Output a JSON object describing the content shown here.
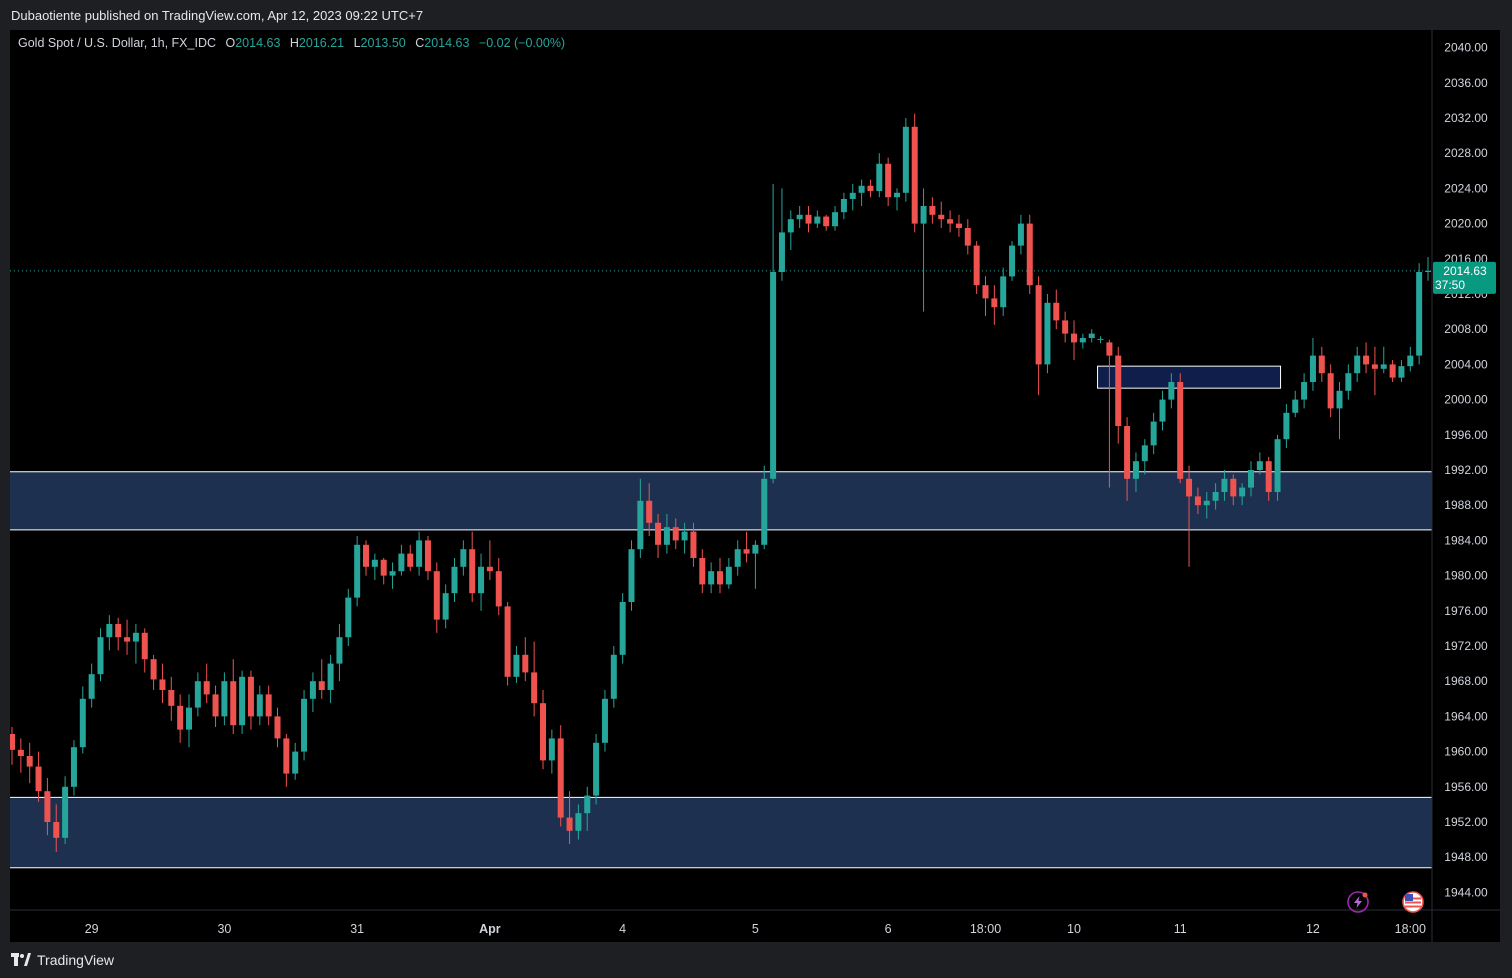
{
  "header": {
    "published": "Dubaotiente published on TradingView.com, Apr 12, 2023 09:22 UTC+7"
  },
  "legend": {
    "symbol": "Gold Spot / U.S. Dollar, 1h, FX_IDC",
    "o_label": "O",
    "o_value": "2014.63",
    "h_label": "H",
    "h_value": "2016.21",
    "l_label": "L",
    "l_value": "2013.50",
    "c_label": "C",
    "c_value": "2014.63",
    "change": "−0.02 (−0.00%)"
  },
  "price_tag": {
    "price": "2014.63",
    "countdown": "37:50"
  },
  "footer": {
    "brand": "TradingView"
  },
  "colors": {
    "background": "#000000",
    "up": "#26a69a",
    "down": "#ef5350",
    "zone_fill": "#1e3050",
    "zone_border": "#ffffff",
    "small_zone_fill": "#0f1e4a",
    "axis_text": "#d1d4dc",
    "price_tag_bg": "#089981"
  },
  "chart_data": {
    "type": "candlestick",
    "symbol": "XAUUSD",
    "timeframe": "1h",
    "ylim": [
      1942,
      2042
    ],
    "y_ticks": [
      "2040.00",
      "2036.00",
      "2032.00",
      "2028.00",
      "2024.00",
      "2020.00",
      "2016.00",
      "2012.00",
      "2008.00",
      "2004.00",
      "2000.00",
      "1996.00",
      "1992.00",
      "1988.00",
      "1984.00",
      "1980.00",
      "1976.00",
      "1972.00",
      "1968.00",
      "1964.00",
      "1960.00",
      "1956.00",
      "1952.00",
      "1948.00",
      "1944.00"
    ],
    "x_ticks": [
      {
        "label": "29",
        "bar": 9
      },
      {
        "label": "30",
        "bar": 24
      },
      {
        "label": "31",
        "bar": 39
      },
      {
        "label": "Apr",
        "bar": 54
      },
      {
        "label": "4",
        "bar": 69
      },
      {
        "label": "5",
        "bar": 84
      },
      {
        "label": "6",
        "bar": 99
      },
      {
        "label": "18:00",
        "bar": 110
      },
      {
        "label": "10",
        "bar": 120
      },
      {
        "label": "11",
        "bar": 132
      },
      {
        "label": "12",
        "bar": 147
      },
      {
        "label": "18:00",
        "bar": 158
      }
    ],
    "last_price": 2014.63,
    "zones": [
      {
        "from": 1985.2,
        "to": 1991.8
      },
      {
        "from": 1946.8,
        "to": 1954.8
      }
    ],
    "small_zone": {
      "start_bar": 123,
      "end_bar": 143,
      "from": 2001.3,
      "to": 2003.8
    },
    "ohlc": [
      [
        1962,
        1962.8,
        1958.5,
        1960.2
      ],
      [
        1960.2,
        1961.5,
        1957.6,
        1959.5
      ],
      [
        1959.5,
        1961,
        1956.4,
        1958.3
      ],
      [
        1958.3,
        1960,
        1954.3,
        1955.5
      ],
      [
        1955.5,
        1957,
        1950.5,
        1952
      ],
      [
        1952,
        1954,
        1948.6,
        1950.2
      ],
      [
        1950.2,
        1957.2,
        1949.5,
        1956
      ],
      [
        1956,
        1961.3,
        1955,
        1960.5
      ],
      [
        1960.5,
        1967.4,
        1959.8,
        1966
      ],
      [
        1966,
        1970,
        1965,
        1968.8
      ],
      [
        1968.8,
        1974,
        1968,
        1973
      ],
      [
        1973,
        1975.5,
        1971.5,
        1974.5
      ],
      [
        1974.5,
        1975.2,
        1971.5,
        1973
      ],
      [
        1973,
        1975,
        1971,
        1972.5
      ],
      [
        1972.5,
        1974.5,
        1970,
        1973.5
      ],
      [
        1973.5,
        1974,
        1969,
        1970.5
      ],
      [
        1970.5,
        1971,
        1967,
        1968.2
      ],
      [
        1968.2,
        1970,
        1965.5,
        1967
      ],
      [
        1967,
        1968.5,
        1963.5,
        1965.2
      ],
      [
        1965.2,
        1966.5,
        1961,
        1962.5
      ],
      [
        1962.5,
        1966.5,
        1960.5,
        1965
      ],
      [
        1965,
        1969,
        1964,
        1968
      ],
      [
        1968,
        1970,
        1965.5,
        1966.5
      ],
      [
        1966.5,
        1967.5,
        1962.8,
        1964
      ],
      [
        1964,
        1969,
        1963,
        1968
      ],
      [
        1968,
        1970.5,
        1962,
        1963
      ],
      [
        1963,
        1969.2,
        1962,
        1968.5
      ],
      [
        1968.5,
        1969.2,
        1962.5,
        1964
      ],
      [
        1964,
        1967.5,
        1963,
        1966.5
      ],
      [
        1966.5,
        1967.5,
        1963,
        1964
      ],
      [
        1964,
        1965,
        1960.5,
        1961.5
      ],
      [
        1961.5,
        1962,
        1956,
        1957.5
      ],
      [
        1957.5,
        1961,
        1956.8,
        1960
      ],
      [
        1960,
        1967,
        1959,
        1966
      ],
      [
        1966,
        1969,
        1964.5,
        1968
      ],
      [
        1968,
        1970.5,
        1966,
        1967
      ],
      [
        1967,
        1971,
        1965.5,
        1970
      ],
      [
        1970,
        1974.5,
        1968,
        1973
      ],
      [
        1973,
        1978.5,
        1972,
        1977.5
      ],
      [
        1977.5,
        1984.5,
        1976.5,
        1983.5
      ],
      [
        1983.5,
        1984,
        1980,
        1981
      ],
      [
        1981,
        1982.5,
        1979.5,
        1981.8
      ],
      [
        1981.8,
        1982,
        1979,
        1980
      ],
      [
        1980,
        1981.5,
        1978.5,
        1980.5
      ],
      [
        1980.5,
        1983.5,
        1980,
        1982.5
      ],
      [
        1982.5,
        1983.5,
        1980.5,
        1981
      ],
      [
        1981,
        1985,
        1980,
        1984
      ],
      [
        1984,
        1984.5,
        1979.5,
        1980.5
      ],
      [
        1980.5,
        1981.5,
        1973.5,
        1975
      ],
      [
        1975,
        1979,
        1974,
        1978
      ],
      [
        1978,
        1982,
        1977,
        1981
      ],
      [
        1981,
        1984,
        1980,
        1983
      ],
      [
        1983,
        1985,
        1977,
        1978
      ],
      [
        1978,
        1982.5,
        1976,
        1981
      ],
      [
        1981,
        1984,
        1979.5,
        1980.5
      ],
      [
        1980.5,
        1982,
        1975.5,
        1976.5
      ],
      [
        1976.5,
        1977,
        1967.5,
        1968.5
      ],
      [
        1968.5,
        1972,
        1967.8,
        1971
      ],
      [
        1971,
        1973,
        1968,
        1969
      ],
      [
        1969,
        1972.5,
        1964,
        1965.5
      ],
      [
        1965.5,
        1967,
        1958,
        1959
      ],
      [
        1959,
        1962.5,
        1957.5,
        1961.5
      ],
      [
        1961.5,
        1963,
        1951.5,
        1952.5
      ],
      [
        1952.5,
        1955.5,
        1949.5,
        1951
      ],
      [
        1951,
        1954,
        1950,
        1953
      ],
      [
        1953,
        1956,
        1951,
        1955
      ],
      [
        1955,
        1962,
        1954,
        1961
      ],
      [
        1961,
        1967,
        1960,
        1966
      ],
      [
        1966,
        1972,
        1965,
        1971
      ],
      [
        1971,
        1978,
        1970,
        1977
      ],
      [
        1977,
        1984,
        1976,
        1983
      ],
      [
        1983,
        1991,
        1982,
        1988.5
      ],
      [
        1988.5,
        1990.5,
        1984.5,
        1986
      ],
      [
        1986,
        1987,
        1982,
        1983.5
      ],
      [
        1983.5,
        1987,
        1982.5,
        1985.5
      ],
      [
        1985.5,
        1986.5,
        1983,
        1984
      ],
      [
        1984,
        1986,
        1982.5,
        1985
      ],
      [
        1985,
        1986,
        1981,
        1982
      ],
      [
        1982,
        1983,
        1978,
        1979
      ],
      [
        1979,
        1981.5,
        1978,
        1980.5
      ],
      [
        1980.5,
        1982,
        1978,
        1979
      ],
      [
        1979,
        1982,
        1978.5,
        1981
      ],
      [
        1981,
        1984,
        1980,
        1983
      ],
      [
        1983,
        1985,
        1981.5,
        1982.5
      ],
      [
        1982.5,
        1984,
        1978.5,
        1983.5
      ],
      [
        1983.5,
        1992.5,
        1983,
        1991
      ],
      [
        1991,
        2024.5,
        1990.5,
        2014.5
      ],
      [
        2014.5,
        2024,
        2013.5,
        2019
      ],
      [
        2019,
        2021.5,
        2017,
        2020.5
      ],
      [
        2020.5,
        2022,
        2019.5,
        2021
      ],
      [
        2021,
        2022,
        2019,
        2020
      ],
      [
        2020,
        2021.5,
        2019.5,
        2020.8
      ],
      [
        2020.8,
        2021,
        2019.2,
        2019.7
      ],
      [
        2019.7,
        2022,
        2019.2,
        2021.3
      ],
      [
        2021.3,
        2023.5,
        2020.5,
        2022.8
      ],
      [
        2022.8,
        2024.5,
        2021.5,
        2023.5
      ],
      [
        2023.5,
        2025,
        2022,
        2024.3
      ],
      [
        2024.3,
        2025,
        2023,
        2023.7
      ],
      [
        2023.7,
        2028,
        2023,
        2026.8
      ],
      [
        2026.8,
        2027.5,
        2022,
        2023
      ],
      [
        2023,
        2024,
        2021.5,
        2023.5
      ],
      [
        2023.5,
        2032,
        2022.5,
        2031
      ],
      [
        2031,
        2032.5,
        2019,
        2020
      ],
      [
        2020,
        2024,
        2010,
        2022
      ],
      [
        2022,
        2023,
        2020,
        2021
      ],
      [
        2021,
        2022.5,
        2019.5,
        2020.5
      ],
      [
        2020.5,
        2021.5,
        2019,
        2020
      ],
      [
        2020,
        2021,
        2018.5,
        2019.5
      ],
      [
        2019.5,
        2020.5,
        2016.5,
        2017.5
      ],
      [
        2017.5,
        2018,
        2012,
        2013
      ],
      [
        2013,
        2014,
        2009.5,
        2011.5
      ],
      [
        2011.5,
        2013,
        2008.5,
        2010.5
      ],
      [
        2010.5,
        2015,
        2009.5,
        2014
      ],
      [
        2014,
        2018,
        2013.5,
        2017.5
      ],
      [
        2017.5,
        2021,
        2016.5,
        2020
      ],
      [
        2020,
        2021,
        2012,
        2013
      ],
      [
        2013,
        2014,
        2000.5,
        2004
      ],
      [
        2004,
        2012,
        2003,
        2011
      ],
      [
        2011,
        2012.5,
        2008,
        2009
      ],
      [
        2009,
        2010,
        2006.5,
        2007.5
      ],
      [
        2007.5,
        2009,
        2004.5,
        2006.5
      ],
      [
        2006.5,
        2007.5,
        2005.8,
        2007
      ],
      [
        2007,
        2008,
        2006.5,
        2007.5
      ],
      [
        2006.8,
        2007.2,
        2006.4,
        2006.9
      ],
      [
        2006.5,
        2006.8,
        1990,
        2005
      ],
      [
        2005,
        2006,
        1995,
        1997
      ],
      [
        1997,
        1998,
        1988.5,
        1991
      ],
      [
        1991,
        1994,
        1989.5,
        1993
      ],
      [
        1993,
        1995.5,
        1991.5,
        1994.8
      ],
      [
        1994.8,
        1998.5,
        1993.8,
        1997.5
      ],
      [
        1997.5,
        2001,
        1996.5,
        2000
      ],
      [
        2000,
        2003,
        1999,
        2002
      ],
      [
        2002,
        2003,
        1990.5,
        1991
      ],
      [
        1991,
        1992.5,
        1981,
        1989
      ],
      [
        1989,
        1990,
        1987,
        1988
      ],
      [
        1988,
        1989.5,
        1986.5,
        1988.5
      ],
      [
        1988.5,
        1990.5,
        1987.5,
        1989.5
      ],
      [
        1989.5,
        1992,
        1988.5,
        1991
      ],
      [
        1991,
        1991.5,
        1988,
        1989
      ],
      [
        1989,
        1990.5,
        1988,
        1990
      ],
      [
        1990,
        1993,
        1989,
        1992
      ],
      [
        1992,
        1994,
        1991.5,
        1993
      ],
      [
        1993,
        1993.5,
        1988.5,
        1989.5
      ],
      [
        1989.5,
        1996,
        1988.5,
        1995.5
      ],
      [
        1995.5,
        1999.5,
        1994.5,
        1998.5
      ],
      [
        1998.5,
        2001,
        1998,
        2000
      ],
      [
        2000,
        2003,
        1999,
        2002
      ],
      [
        2002,
        2007,
        2001,
        2005
      ],
      [
        2005,
        2006,
        2002,
        2003
      ],
      [
        2003,
        2004,
        1998,
        1999
      ],
      [
        1999,
        2002,
        1995.5,
        2001
      ],
      [
        2001,
        2004,
        2000,
        2003
      ],
      [
        2003,
        2006,
        2002,
        2005
      ],
      [
        2005,
        2006.5,
        2003,
        2004
      ],
      [
        2004,
        2006,
        2000.5,
        2003.5
      ],
      [
        2003.5,
        2006,
        2003,
        2004
      ],
      [
        2004,
        2004.5,
        2002,
        2002.5
      ],
      [
        2002.5,
        2004.5,
        2002,
        2003.8
      ],
      [
        2003.8,
        2006,
        2003.2,
        2005
      ],
      [
        2005,
        2015.5,
        2004,
        2014.5
      ],
      [
        2014.5,
        2016.21,
        2013.5,
        2014.63
      ]
    ]
  }
}
